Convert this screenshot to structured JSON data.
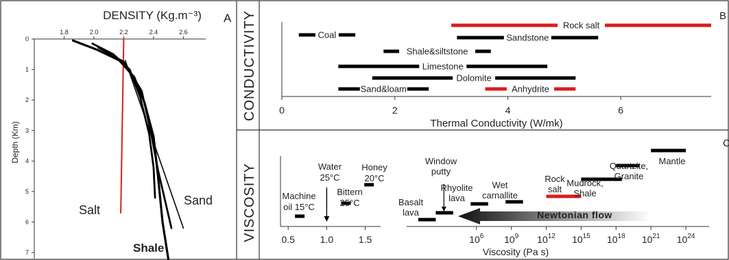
{
  "chart_data": [
    {
      "panel": "A",
      "type": "line",
      "title": "DENSITY (Kg.m⁻³)",
      "xlabel": "",
      "ylabel": "Depth (Km)",
      "xlim": [
        1.6,
        2.75
      ],
      "ylim": [
        0,
        7.2
      ],
      "x_ticks": [
        "1.8",
        "2.0",
        "2.2",
        "2.4",
        "2.6"
      ],
      "y_ticks": [
        "0",
        "1",
        "2",
        "3",
        "4",
        "5",
        "6",
        "7"
      ],
      "series": [
        {
          "name": "Salt",
          "color": "#d81f1f",
          "points": [
            [
              2.2,
              0
            ],
            [
              2.18,
              5.7
            ]
          ]
        },
        {
          "name": "Shale",
          "color": "#000000",
          "points": [
            [
              1.86,
              0.05
            ],
            [
              2.02,
              0.35
            ],
            [
              2.17,
              0.7
            ],
            [
              2.27,
              1.25
            ],
            [
              2.34,
              2.1
            ],
            [
              2.4,
              3.2
            ],
            [
              2.43,
              4.5
            ],
            [
              2.46,
              6.0
            ],
            [
              2.5,
              7.25
            ]
          ]
        },
        {
          "name": "",
          "color": "#000000",
          "points": [
            [
              1.99,
              0.15
            ],
            [
              2.13,
              0.5
            ],
            [
              2.24,
              1.0
            ],
            [
              2.31,
              1.9
            ],
            [
              2.37,
              3.1
            ],
            [
              2.4,
              4.2
            ],
            [
              2.41,
              5.2
            ]
          ]
        },
        {
          "name": "Sand",
          "color": "#000000",
          "points": [
            [
              2.03,
              0.28
            ],
            [
              2.2,
              0.75
            ],
            [
              2.32,
              1.7
            ],
            [
              2.38,
              3.0
            ],
            [
              2.43,
              4.3
            ],
            [
              2.52,
              6.2
            ]
          ]
        },
        {
          "name": "",
          "color": "#000000",
          "points": [
            [
              2.21,
              0.7
            ],
            [
              2.6,
              6.2
            ]
          ]
        }
      ],
      "labels": [
        "Salt",
        "Sand",
        "Shale",
        "A"
      ]
    },
    {
      "panel": "B",
      "type": "bar",
      "row_label": "CONDUCTIVITY",
      "xlabel": "Thermal Conductivity (W/mk)",
      "xlim": [
        0,
        7.6
      ],
      "x_ticks": [
        "0",
        "2",
        "4",
        "6"
      ],
      "ranges": [
        {
          "name": "Rock salt",
          "min": 3.0,
          "max": 7.6,
          "color": "#d81f1f"
        },
        {
          "name": "Coal",
          "min": 0.3,
          "max": 1.3,
          "color": "#000000"
        },
        {
          "name": "Sandstone",
          "min": 3.1,
          "max": 5.6,
          "color": "#000000"
        },
        {
          "name": "Shale&siltstone",
          "min": 1.8,
          "max": 3.7,
          "color": "#000000"
        },
        {
          "name": "Limestone",
          "min": 1.0,
          "max": 4.7,
          "color": "#000000"
        },
        {
          "name": "Dolomite",
          "min": 1.6,
          "max": 5.2,
          "color": "#000000"
        },
        {
          "name": "Sand&loam",
          "min": 1.0,
          "max": 2.6,
          "color": "#000000"
        },
        {
          "name": "Anhydrite",
          "min": 3.6,
          "max": 5.2,
          "color": "#d81f1f"
        }
      ],
      "panel_letter": "B"
    },
    {
      "panel": "C",
      "type": "bar",
      "row_label": "VISCOSITY",
      "xlabel": "Viscosity (Pa s)",
      "xlim_left": [
        0.4,
        1.7
      ],
      "x_ticks_left": [
        "0.5",
        "1.0",
        "1.5"
      ],
      "xlim_right_log10": [
        0,
        26
      ],
      "x_ticks_right": [
        "6",
        "9",
        "12",
        "15",
        "18",
        "21",
        "24"
      ],
      "x_tick_base": "10",
      "materials_left": [
        {
          "name": [
            "Machine",
            "oil 15°C"
          ],
          "value": 0.65
        },
        {
          "name": [
            "Water",
            "25°C"
          ],
          "value": 1.0
        },
        {
          "name": [
            "Bittern",
            "25°C"
          ],
          "value": 1.25
        },
        {
          "name": [
            "Honey",
            "20°C"
          ],
          "value": 1.55
        }
      ],
      "materials_right": [
        {
          "name": [
            "Basalt",
            "lava"
          ],
          "min": 1.0,
          "max": 2.5,
          "color": "#000000"
        },
        {
          "name": [
            "Window",
            "putty"
          ],
          "min": 2.5,
          "max": 4.0,
          "color": "#000000"
        },
        {
          "name": [
            "Rhyolite",
            "lava"
          ],
          "min": 5.5,
          "max": 7.0,
          "color": "#000000"
        },
        {
          "name": [
            "Wet",
            "carnallite"
          ],
          "min": 8.5,
          "max": 10.0,
          "color": "#000000"
        },
        {
          "name": [
            "Rock",
            "salt"
          ],
          "min": 12.0,
          "max": 15.0,
          "color": "#d81f1f"
        },
        {
          "name": [
            "Mudrock,",
            "Shale"
          ],
          "min": 15.0,
          "max": 18.5,
          "color": "#000000"
        },
        {
          "name": [
            "Quartzite,",
            "Granite"
          ],
          "min": 18.0,
          "max": 20.0,
          "color": "#000000"
        },
        {
          "name": [
            "Mantle"
          ],
          "min": 21.0,
          "max": 24.0,
          "color": "#000000"
        }
      ],
      "arrow_label": "Newtonian flow",
      "panel_letter": "C"
    }
  ]
}
